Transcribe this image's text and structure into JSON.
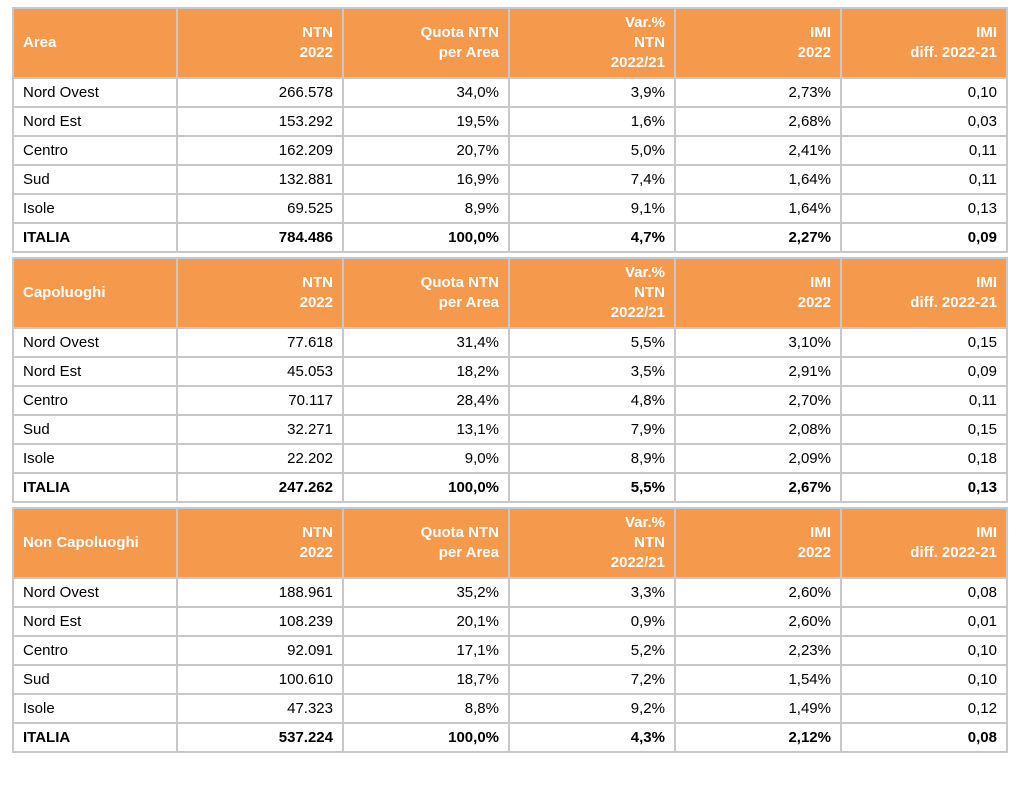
{
  "colors": {
    "header_bg": "#F59A4D",
    "header_text": "#FFFFFF",
    "grid_border": "#C8C8C8",
    "body_text": "#000000"
  },
  "chart_data": {
    "type": "table",
    "columns": [
      "NTN\n2022",
      "Quota NTN\nper Area",
      "Var.%\nNTN\n2022/21",
      "IMI\n2022",
      "IMI\ndiff. 2022-21"
    ],
    "sections": [
      {
        "label": "Area",
        "rows": [
          {
            "area": "Nord Ovest",
            "ntn": "266.578",
            "quota": "34,0%",
            "var": "3,9%",
            "imi": "2,73%",
            "diff": "0,10"
          },
          {
            "area": "Nord Est",
            "ntn": "153.292",
            "quota": "19,5%",
            "var": "1,6%",
            "imi": "2,68%",
            "diff": "0,03"
          },
          {
            "area": "Centro",
            "ntn": "162.209",
            "quota": "20,7%",
            "var": "5,0%",
            "imi": "2,41%",
            "diff": "0,11"
          },
          {
            "area": "Sud",
            "ntn": "132.881",
            "quota": "16,9%",
            "var": "7,4%",
            "imi": "1,64%",
            "diff": "0,11"
          },
          {
            "area": "Isole",
            "ntn": "69.525",
            "quota": "8,9%",
            "var": "9,1%",
            "imi": "1,64%",
            "diff": "0,13"
          }
        ],
        "total": {
          "area": "ITALIA",
          "ntn": "784.486",
          "quota": "100,0%",
          "var": "4,7%",
          "imi": "2,27%",
          "diff": "0,09"
        }
      },
      {
        "label": "Capoluoghi",
        "rows": [
          {
            "area": "Nord Ovest",
            "ntn": "77.618",
            "quota": "31,4%",
            "var": "5,5%",
            "imi": "3,10%",
            "diff": "0,15"
          },
          {
            "area": "Nord Est",
            "ntn": "45.053",
            "quota": "18,2%",
            "var": "3,5%",
            "imi": "2,91%",
            "diff": "0,09"
          },
          {
            "area": "Centro",
            "ntn": "70.117",
            "quota": "28,4%",
            "var": "4,8%",
            "imi": "2,70%",
            "diff": "0,11"
          },
          {
            "area": "Sud",
            "ntn": "32.271",
            "quota": "13,1%",
            "var": "7,9%",
            "imi": "2,08%",
            "diff": "0,15"
          },
          {
            "area": "Isole",
            "ntn": "22.202",
            "quota": "9,0%",
            "var": "8,9%",
            "imi": "2,09%",
            "diff": "0,18"
          }
        ],
        "total": {
          "area": "ITALIA",
          "ntn": "247.262",
          "quota": "100,0%",
          "var": "5,5%",
          "imi": "2,67%",
          "diff": "0,13"
        }
      },
      {
        "label": "Non Capoluoghi",
        "rows": [
          {
            "area": "Nord Ovest",
            "ntn": "188.961",
            "quota": "35,2%",
            "var": "3,3%",
            "imi": "2,60%",
            "diff": "0,08"
          },
          {
            "area": "Nord Est",
            "ntn": "108.239",
            "quota": "20,1%",
            "var": "0,9%",
            "imi": "2,60%",
            "diff": "0,01"
          },
          {
            "area": "Centro",
            "ntn": "92.091",
            "quota": "17,1%",
            "var": "5,2%",
            "imi": "2,23%",
            "diff": "0,10"
          },
          {
            "area": "Sud",
            "ntn": "100.610",
            "quota": "18,7%",
            "var": "7,2%",
            "imi": "1,54%",
            "diff": "0,10"
          },
          {
            "area": "Isole",
            "ntn": "47.323",
            "quota": "8,8%",
            "var": "9,2%",
            "imi": "1,49%",
            "diff": "0,12"
          }
        ],
        "total": {
          "area": "ITALIA",
          "ntn": "537.224",
          "quota": "100,0%",
          "var": "4,3%",
          "imi": "2,12%",
          "diff": "0,08"
        }
      }
    ]
  }
}
